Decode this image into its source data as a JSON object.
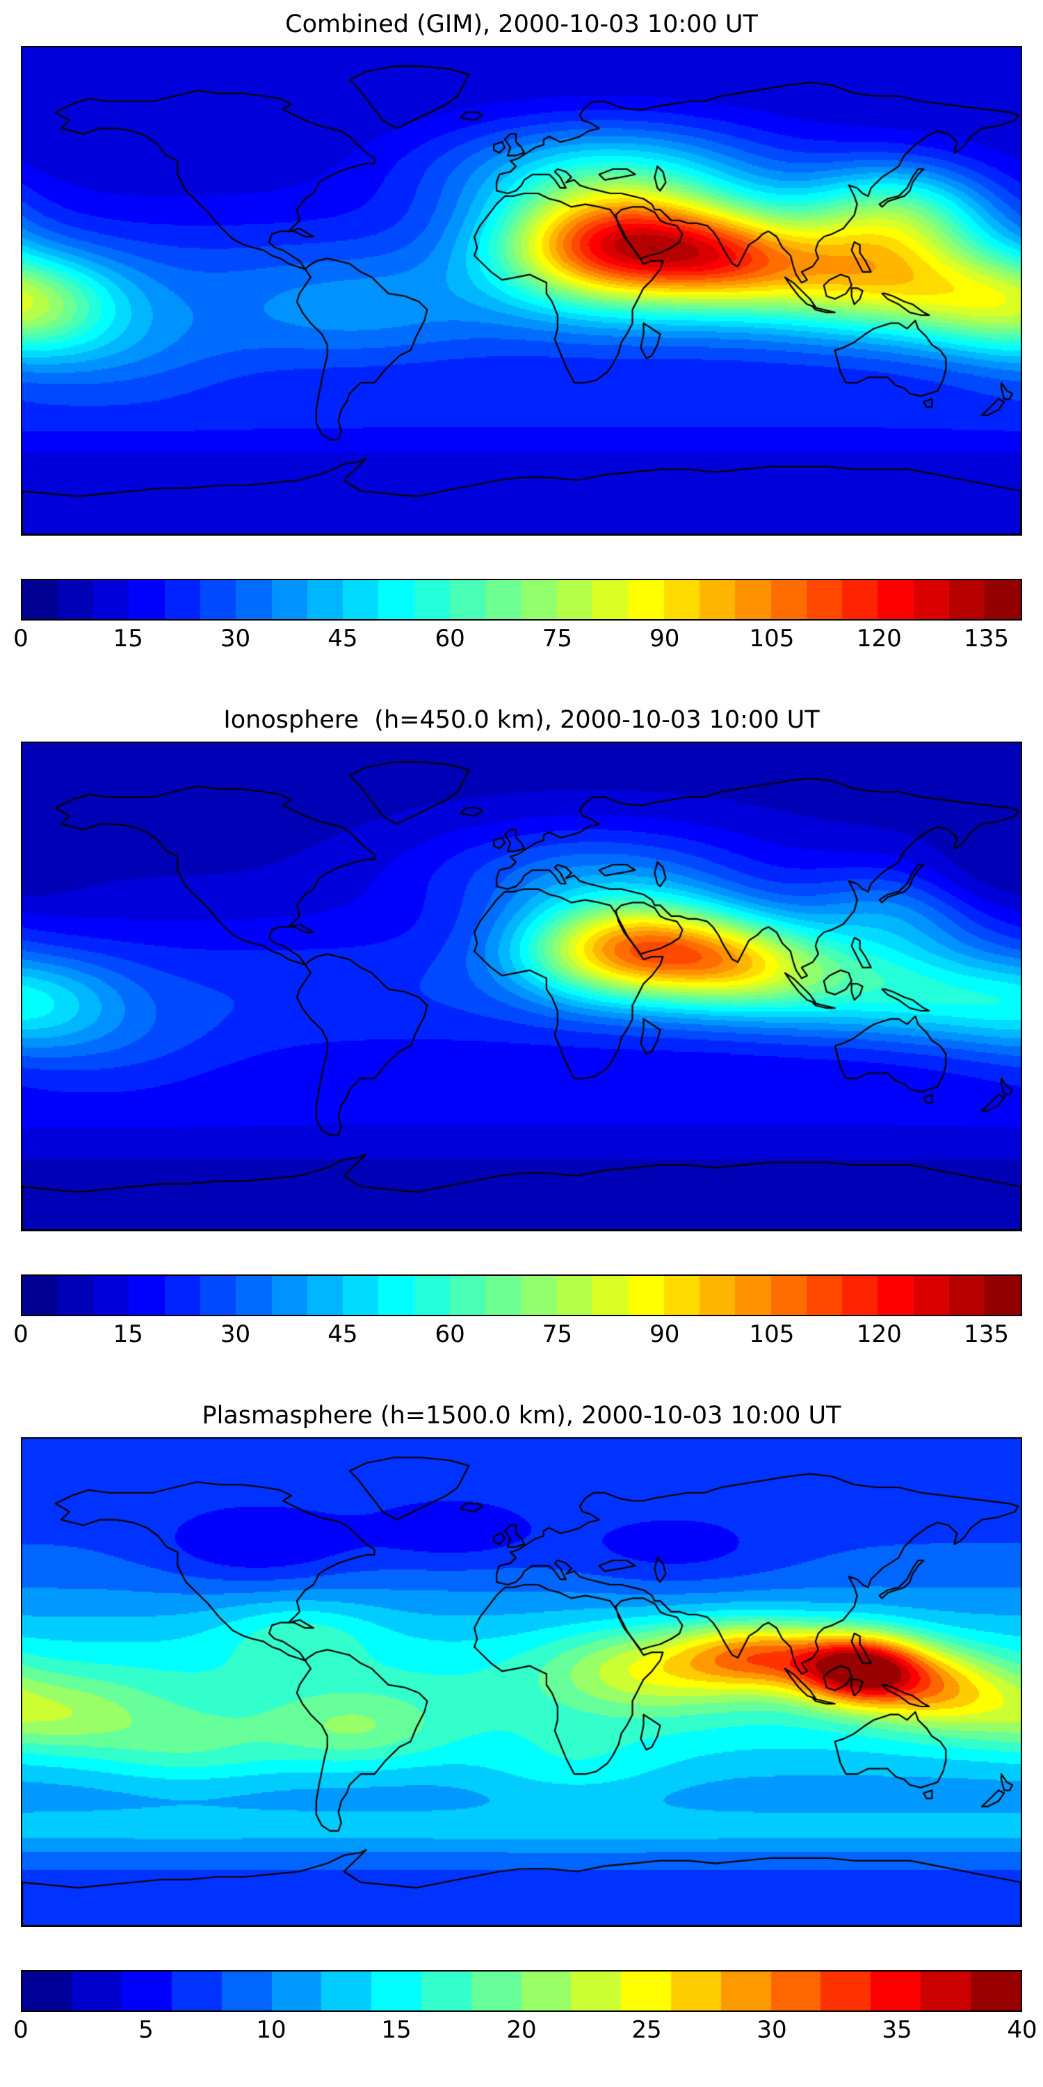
{
  "figure": {
    "background": "#ffffff",
    "text_color": "#000000",
    "coastline_color": "#000000"
  },
  "chart_data": [
    {
      "type": "heatmap",
      "title": "Combined (GIM), 2000-10-03 10:00 UT",
      "projection": "equirectangular",
      "lon_range": [
        -180,
        180
      ],
      "lat_range": [
        -90,
        90
      ],
      "colormap": "jet",
      "coastline_color": "#000000",
      "vmin": 0,
      "vmax": 140,
      "level_step": 5,
      "colorbar_orientation": "horizontal",
      "colorbar_ticks": [
        0,
        15,
        30,
        45,
        60,
        75,
        90,
        105,
        120,
        135
      ],
      "base": {
        "offset": 10,
        "equator_amp": 20,
        "lat_center": -3,
        "lat_sigma": 32,
        "south_band": {
          "lat": -48,
          "sigma": 14,
          "amp": 8
        }
      },
      "blobs": [
        {
          "lon": 35,
          "lat": 17,
          "sx": 30,
          "sy": 15,
          "amp": 95
        },
        {
          "lon": 75,
          "lat": 12,
          "sx": 22,
          "sy": 13,
          "amp": 45
        },
        {
          "lon": 115,
          "lat": 6,
          "sx": 25,
          "sy": 14,
          "amp": 45
        },
        {
          "lon": 150,
          "lat": 0,
          "sx": 22,
          "sy": 13,
          "amp": 25
        },
        {
          "lon": -178,
          "lat": -5,
          "sx": 24,
          "sy": 13,
          "amp": 40
        },
        {
          "lon": 30,
          "lat": 45,
          "sx": 45,
          "sy": 14,
          "amp": 32
        },
        {
          "lon": 135,
          "lat": 28,
          "sx": 25,
          "sy": 14,
          "amp": 45
        },
        {
          "lon": -150,
          "lat": -25,
          "sx": 35,
          "sy": 12,
          "amp": 10
        },
        {
          "lon": -60,
          "lat": -8,
          "sx": 30,
          "sy": 14,
          "amp": 8
        }
      ]
    },
    {
      "type": "heatmap",
      "title": "Ionosphere  (h=450.0 km), 2000-10-03 10:00 UT",
      "projection": "equirectangular",
      "lon_range": [
        -180,
        180
      ],
      "lat_range": [
        -90,
        90
      ],
      "colormap": "jet",
      "coastline_color": "#000000",
      "vmin": 0,
      "vmax": 140,
      "level_step": 5,
      "colorbar_orientation": "horizontal",
      "colorbar_ticks": [
        0,
        15,
        30,
        45,
        60,
        75,
        90,
        105,
        120,
        135
      ],
      "base": {
        "offset": 8,
        "equator_amp": 16,
        "lat_center": -3,
        "lat_sigma": 30,
        "south_band": {
          "lat": -48,
          "sigma": 14,
          "amp": 6
        }
      },
      "blobs": [
        {
          "lon": 40,
          "lat": 14,
          "sx": 28,
          "sy": 13,
          "amp": 80
        },
        {
          "lon": 78,
          "lat": 8,
          "sx": 22,
          "sy": 12,
          "amp": 40
        },
        {
          "lon": 112,
          "lat": 2,
          "sx": 24,
          "sy": 13,
          "amp": 25
        },
        {
          "lon": 145,
          "lat": -3,
          "sx": 20,
          "sy": 12,
          "amp": 15
        },
        {
          "lon": -178,
          "lat": -6,
          "sx": 24,
          "sy": 12,
          "amp": 25
        },
        {
          "lon": 25,
          "lat": 42,
          "sx": 45,
          "sy": 14,
          "amp": 22
        },
        {
          "lon": 135,
          "lat": 28,
          "sx": 25,
          "sy": 13,
          "amp": 22
        },
        {
          "lon": 165,
          "lat": 38,
          "sx": 20,
          "sy": 11,
          "amp": -8
        },
        {
          "lon": -150,
          "lat": -25,
          "sx": 35,
          "sy": 12,
          "amp": 8
        }
      ]
    },
    {
      "type": "heatmap",
      "title": "Plasmasphere (h=1500.0 km), 2000-10-03 10:00 UT",
      "projection": "equirectangular",
      "lon_range": [
        -180,
        180
      ],
      "lat_range": [
        -90,
        90
      ],
      "colormap": "jet",
      "coastline_color": "#000000",
      "vmin": 0,
      "vmax": 40,
      "level_step": 2,
      "colorbar_orientation": "horizontal",
      "colorbar_ticks": [
        0,
        5,
        10,
        15,
        20,
        25,
        30,
        35,
        40
      ],
      "base": {
        "offset": 7,
        "equator_amp": 9,
        "lat_center": -5,
        "lat_sigma": 38,
        "south_band": {
          "lat": -55,
          "sigma": 10,
          "amp": 4
        }
      },
      "blobs": [
        {
          "lon": 122,
          "lat": 5,
          "sx": 16,
          "sy": 9,
          "amp": 24
        },
        {
          "lon": 85,
          "lat": 10,
          "sx": 20,
          "sy": 9,
          "amp": 14
        },
        {
          "lon": 45,
          "lat": 5,
          "sx": 25,
          "sy": 11,
          "amp": 8
        },
        {
          "lon": 150,
          "lat": -2,
          "sx": 18,
          "sy": 10,
          "amp": 10
        },
        {
          "lon": -170,
          "lat": -12,
          "sx": 25,
          "sy": 10,
          "amp": 6
        },
        {
          "lon": -60,
          "lat": -18,
          "sx": 22,
          "sy": 10,
          "amp": 5
        },
        {
          "lon": -120,
          "lat": -25,
          "sx": 25,
          "sy": 10,
          "amp": 4
        },
        {
          "lon": 20,
          "lat": -32,
          "sx": 25,
          "sy": 10,
          "amp": 3
        },
        {
          "lon": -80,
          "lat": 18,
          "sx": 20,
          "sy": 9,
          "amp": 4
        },
        {
          "lon": -95,
          "lat": 50,
          "sx": 25,
          "sy": 10,
          "amp": -4
        },
        {
          "lon": 55,
          "lat": 48,
          "sx": 28,
          "sy": 10,
          "amp": -3
        },
        {
          "lon": -25,
          "lat": 55,
          "sx": 22,
          "sy": 9,
          "amp": -3
        }
      ]
    }
  ]
}
